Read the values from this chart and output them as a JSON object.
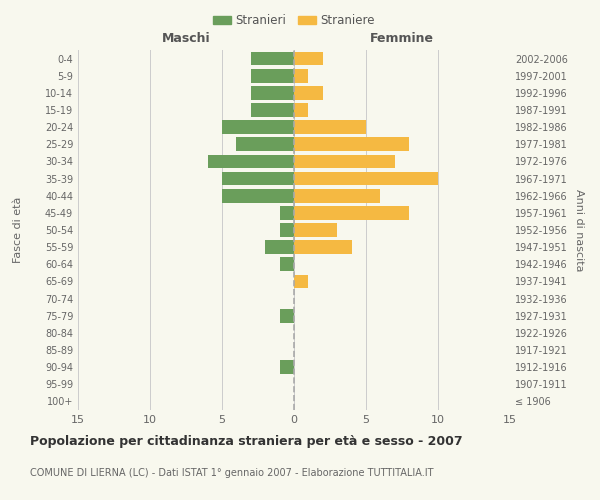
{
  "age_groups": [
    "100+",
    "95-99",
    "90-94",
    "85-89",
    "80-84",
    "75-79",
    "70-74",
    "65-69",
    "60-64",
    "55-59",
    "50-54",
    "45-49",
    "40-44",
    "35-39",
    "30-34",
    "25-29",
    "20-24",
    "15-19",
    "10-14",
    "5-9",
    "0-4"
  ],
  "birth_years": [
    "≤ 1906",
    "1907-1911",
    "1912-1916",
    "1917-1921",
    "1922-1926",
    "1927-1931",
    "1932-1936",
    "1937-1941",
    "1942-1946",
    "1947-1951",
    "1952-1956",
    "1957-1961",
    "1962-1966",
    "1967-1971",
    "1972-1976",
    "1977-1981",
    "1982-1986",
    "1987-1991",
    "1992-1996",
    "1997-2001",
    "2002-2006"
  ],
  "males": [
    0,
    0,
    1,
    0,
    0,
    1,
    0,
    0,
    1,
    2,
    1,
    1,
    5,
    5,
    6,
    4,
    5,
    3,
    3,
    3,
    3
  ],
  "females": [
    0,
    0,
    0,
    0,
    0,
    0,
    0,
    1,
    0,
    4,
    3,
    8,
    6,
    10,
    7,
    8,
    5,
    1,
    2,
    1,
    2
  ],
  "male_color": "#6a9e5b",
  "female_color": "#f5b942",
  "background_color": "#f8f8ee",
  "grid_color": "#cccccc",
  "dashed_line_color": "#aaaaaa",
  "title": "Popolazione per cittadinanza straniera per età e sesso - 2007",
  "subtitle": "COMUNE DI LIERNA (LC) - Dati ISTAT 1° gennaio 2007 - Elaborazione TUTTITALIA.IT",
  "xlabel_left": "Maschi",
  "xlabel_right": "Femmine",
  "ylabel_left": "Fasce di età",
  "ylabel_right": "Anni di nascita",
  "legend_male": "Stranieri",
  "legend_female": "Straniere",
  "xlim": 15,
  "bar_height": 0.8
}
